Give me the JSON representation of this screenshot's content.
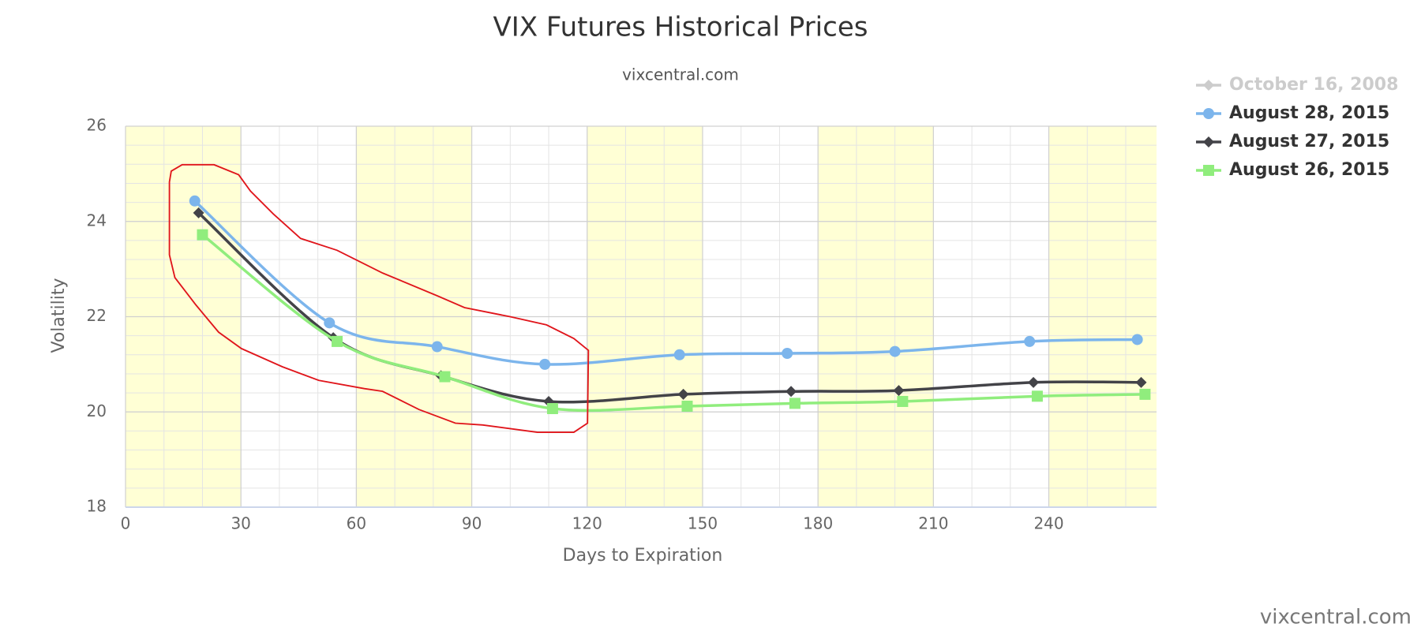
{
  "chart_data": {
    "type": "line",
    "title": "VIX Futures Historical Prices",
    "subtitle": "vixcentral.com",
    "x_label": "Days to Expiration",
    "y_label": "Volatility",
    "credits": "vixcentral.com",
    "xlim": [
      0,
      268
    ],
    "xticks": [
      0,
      30,
      60,
      90,
      120,
      150,
      180,
      210,
      240
    ],
    "ylim": [
      18,
      26
    ],
    "yticks": [
      18,
      20,
      22,
      24,
      26
    ],
    "grid": true,
    "minor_grid": {
      "x": 10,
      "y": 0.4
    },
    "band_color": "#ffffd5",
    "legend": "right",
    "series": [
      {
        "name": "October 16, 2008",
        "color": "#cccccc",
        "marker": "diamond",
        "visible": false
      },
      {
        "name": "August 28, 2015",
        "color": "#7cb5ec",
        "marker": "circle",
        "x": [
          18,
          53,
          81,
          109,
          144,
          172,
          200,
          235,
          263
        ],
        "values": [
          24.43,
          21.87,
          21.37,
          21.0,
          21.2,
          21.23,
          21.27,
          21.48,
          21.52
        ]
      },
      {
        "name": "August 27, 2015",
        "color": "#434348",
        "marker": "diamond",
        "x": [
          19,
          54,
          82,
          110,
          145,
          173,
          201,
          236,
          264
        ],
        "values": [
          24.18,
          21.56,
          20.76,
          20.22,
          20.37,
          20.43,
          20.45,
          20.62,
          20.62
        ]
      },
      {
        "name": "August 26, 2015",
        "color": "#90ed7d",
        "marker": "square",
        "x": [
          20,
          55,
          83,
          111,
          146,
          174,
          202,
          237,
          265
        ],
        "values": [
          23.72,
          21.48,
          20.74,
          20.07,
          20.12,
          20.18,
          20.22,
          20.33,
          20.37
        ]
      }
    ]
  }
}
